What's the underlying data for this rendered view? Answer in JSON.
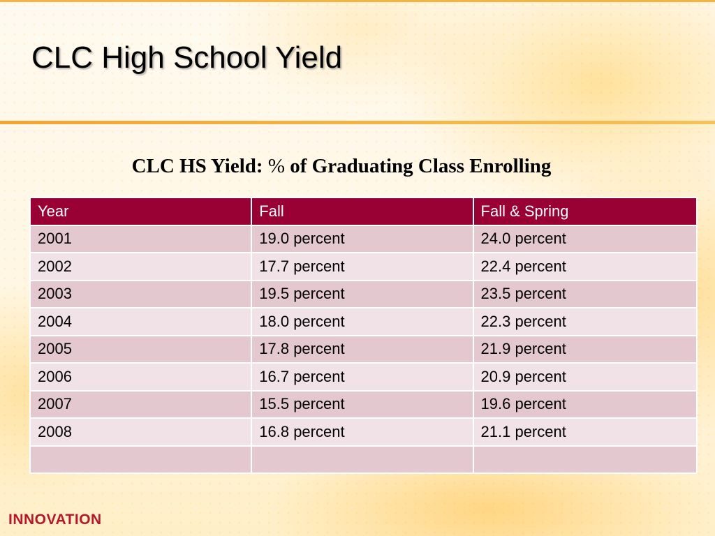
{
  "slide": {
    "title": "CLC High School Yield",
    "logo_text": "INNOVATION"
  },
  "table": {
    "caption_prefix": "CLC HS Yield: ",
    "caption_symbol": "%",
    "caption_suffix": " of Graduating Class Enrolling",
    "headers": [
      "Year",
      "Fall",
      "Fall & Spring"
    ],
    "rows": [
      [
        "2001",
        "19.0 percent",
        "24.0 percent"
      ],
      [
        "2002",
        "17.7 percent",
        "22.4 percent"
      ],
      [
        "2003",
        "19.5 percent",
        "23.5 percent"
      ],
      [
        "2004",
        "18.0 percent",
        "22.3 percent"
      ],
      [
        "2005",
        "17.8 percent",
        "21.9 percent"
      ],
      [
        "2006",
        "16.7 percent",
        "20.9 percent"
      ],
      [
        "2007",
        "15.5 percent",
        "19.6 percent"
      ],
      [
        "2008",
        "16.8 percent",
        "21.1 percent"
      ],
      [
        "",
        "",
        ""
      ]
    ]
  },
  "colors": {
    "header_bg": "#990033",
    "row_odd_bg": "#e4c8d0",
    "row_even_bg": "#f0e2e6",
    "accent_line": "#f2a531",
    "logo": "#b5182b"
  }
}
